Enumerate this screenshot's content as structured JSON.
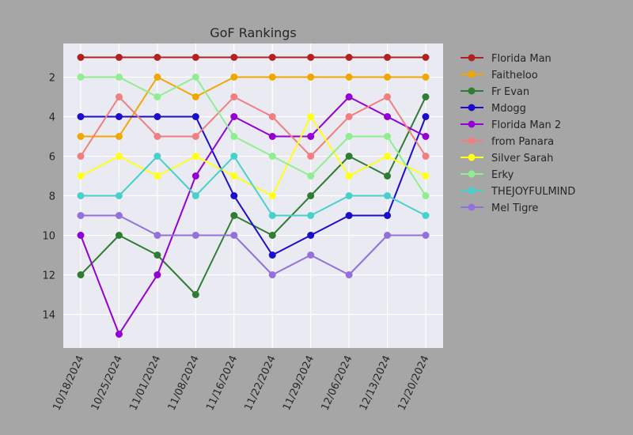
{
  "chart_data": {
    "type": "line",
    "title": "GoF Rankings",
    "xlabel": "",
    "ylabel": "",
    "categories": [
      "10/18/2024",
      "10/25/2024",
      "11/01/2024",
      "11/08/2024",
      "11/16/2024",
      "11/22/2024",
      "11/29/2024",
      "12/06/2024",
      "12/13/2024",
      "12/20/2024"
    ],
    "y_inverted": true,
    "ylim": [
      15.7,
      0.3
    ],
    "yticks": [
      2,
      4,
      6,
      8,
      10,
      12,
      14
    ],
    "grid": true,
    "legend_position": "outside-right",
    "series": [
      {
        "name": "Florida Man",
        "color": "#b22222",
        "values": [
          1,
          1,
          1,
          1,
          1,
          1,
          1,
          1,
          1,
          1
        ]
      },
      {
        "name": "Faitheloo",
        "color": "#f0a800",
        "values": [
          5,
          5,
          2,
          3,
          2,
          2,
          2,
          2,
          2,
          2
        ]
      },
      {
        "name": "Fr Evan",
        "color": "#2e7d32",
        "values": [
          12,
          10,
          11,
          13,
          9,
          10,
          8,
          6,
          7,
          3
        ]
      },
      {
        "name": "Mdogg",
        "color": "#1a0dcc",
        "values": [
          4,
          4,
          4,
          4,
          8,
          11,
          10,
          9,
          9,
          4
        ]
      },
      {
        "name": "Florida Man 2",
        "color": "#9400d3",
        "values": [
          10,
          15,
          12,
          7,
          4,
          5,
          5,
          3,
          4,
          5
        ]
      },
      {
        "name": "from Panara",
        "color": "#f08080",
        "values": [
          6,
          3,
          5,
          5,
          3,
          4,
          6,
          4,
          3,
          6
        ]
      },
      {
        "name": "Silver Sarah",
        "color": "#ffff1a",
        "values": [
          7,
          6,
          7,
          6,
          7,
          8,
          4,
          7,
          6,
          7
        ]
      },
      {
        "name": "Erky",
        "color": "#90ee90",
        "values": [
          2,
          2,
          3,
          2,
          5,
          6,
          7,
          5,
          5,
          8
        ]
      },
      {
        "name": "THEJOYFULMIND",
        "color": "#48d1cc",
        "values": [
          8,
          8,
          6,
          8,
          6,
          9,
          9,
          8,
          8,
          9
        ]
      },
      {
        "name": "Mel Tigre",
        "color": "#9370db",
        "values": [
          9,
          9,
          10,
          10,
          10,
          12,
          11,
          12,
          10,
          10
        ]
      }
    ]
  }
}
